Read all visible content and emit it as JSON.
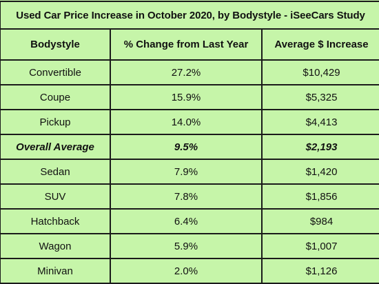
{
  "title": "Used Car Price Increase in October 2020, by Bodystyle - iSeeCars Study",
  "columns": [
    "Bodystyle",
    "% Change from Last Year",
    "Average $ Increase"
  ],
  "rows": [
    {
      "bodystyle": "Convertible",
      "pct_change": "27.2%",
      "avg_increase": "$10,429"
    },
    {
      "bodystyle": "Coupe",
      "pct_change": "15.9%",
      "avg_increase": "$5,325"
    },
    {
      "bodystyle": "Pickup",
      "pct_change": "14.0%",
      "avg_increase": "$4,413"
    },
    {
      "bodystyle": "Overall Average",
      "pct_change": "9.5%",
      "avg_increase": "$2,193",
      "highlight": true
    },
    {
      "bodystyle": "Sedan",
      "pct_change": "7.9%",
      "avg_increase": "$1,420"
    },
    {
      "bodystyle": "SUV",
      "pct_change": "7.8%",
      "avg_increase": "$1,856"
    },
    {
      "bodystyle": "Hatchback",
      "pct_change": "6.4%",
      "avg_increase": "$984"
    },
    {
      "bodystyle": "Wagon",
      "pct_change": "5.9%",
      "avg_increase": "$1,007"
    },
    {
      "bodystyle": "Minivan",
      "pct_change": "2.0%",
      "avg_increase": "$1,126"
    }
  ],
  "colors": {
    "background": "#c6f5a9",
    "border": "#1a1a1a",
    "text": "#111111"
  },
  "chart_data": {
    "type": "table",
    "title": "Used Car Price Increase in October 2020, by Bodystyle - iSeeCars Study",
    "columns": [
      "Bodystyle",
      "% Change from Last Year",
      "Average $ Increase"
    ],
    "categories": [
      "Convertible",
      "Coupe",
      "Pickup",
      "Overall Average",
      "Sedan",
      "SUV",
      "Hatchback",
      "Wagon",
      "Minivan"
    ],
    "series": [
      {
        "name": "% Change from Last Year",
        "values": [
          27.2,
          15.9,
          14.0,
          9.5,
          7.9,
          7.8,
          6.4,
          5.9,
          2.0
        ]
      },
      {
        "name": "Average $ Increase",
        "values": [
          10429,
          5325,
          4413,
          2193,
          1420,
          1856,
          984,
          1007,
          1126
        ]
      }
    ]
  }
}
